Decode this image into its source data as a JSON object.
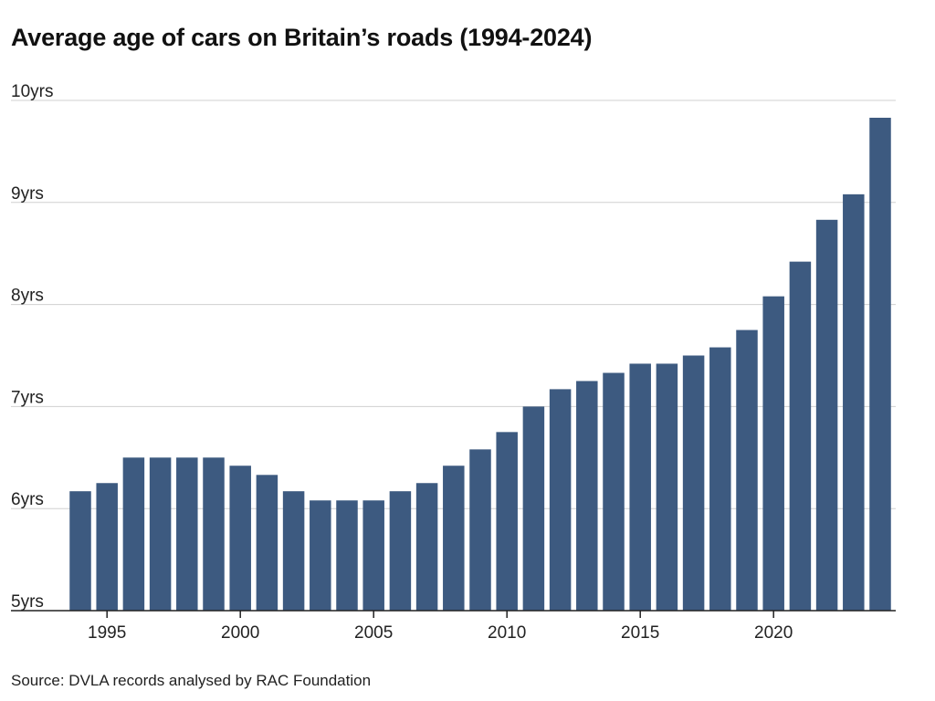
{
  "title": "Average age of cars on Britain’s roads (1994-2024)",
  "source": "Source: DVLA records analysed by RAC Foundation",
  "chart_data": {
    "type": "bar",
    "title": "Average age of cars on Britain’s roads (1994-2024)",
    "xlabel": "",
    "ylabel": "",
    "categories": [
      1994,
      1995,
      1996,
      1997,
      1998,
      1999,
      2000,
      2001,
      2002,
      2003,
      2004,
      2005,
      2006,
      2007,
      2008,
      2009,
      2010,
      2011,
      2012,
      2013,
      2014,
      2015,
      2016,
      2017,
      2018,
      2019,
      2020,
      2021,
      2022,
      2023,
      2024
    ],
    "values": [
      6.17,
      6.25,
      6.5,
      6.5,
      6.5,
      6.5,
      6.42,
      6.33,
      6.17,
      6.08,
      6.08,
      6.08,
      6.17,
      6.25,
      6.42,
      6.58,
      6.75,
      7.0,
      7.17,
      7.25,
      7.33,
      7.42,
      7.42,
      7.5,
      7.58,
      7.75,
      8.08,
      8.42,
      8.83,
      9.08,
      9.83
    ],
    "ylim": [
      5,
      10
    ],
    "y_ticks": [
      {
        "value": 10,
        "label": "10yrs"
      },
      {
        "value": 9,
        "label": "9yrs"
      },
      {
        "value": 8,
        "label": "8yrs"
      },
      {
        "value": 7,
        "label": "7yrs"
      },
      {
        "value": 6,
        "label": "6yrs"
      },
      {
        "value": 5,
        "label": "5yrs"
      }
    ],
    "x_ticks": [
      {
        "value": 1995,
        "label": "1995"
      },
      {
        "value": 2000,
        "label": "2000"
      },
      {
        "value": 2005,
        "label": "2005"
      },
      {
        "value": 2010,
        "label": "2010"
      },
      {
        "value": 2015,
        "label": "2015"
      },
      {
        "value": 2020,
        "label": "2020"
      }
    ],
    "grid": true,
    "bar_color": "#3d5a80",
    "grid_color": "#d0d0d0",
    "axis_color": "#222222"
  }
}
